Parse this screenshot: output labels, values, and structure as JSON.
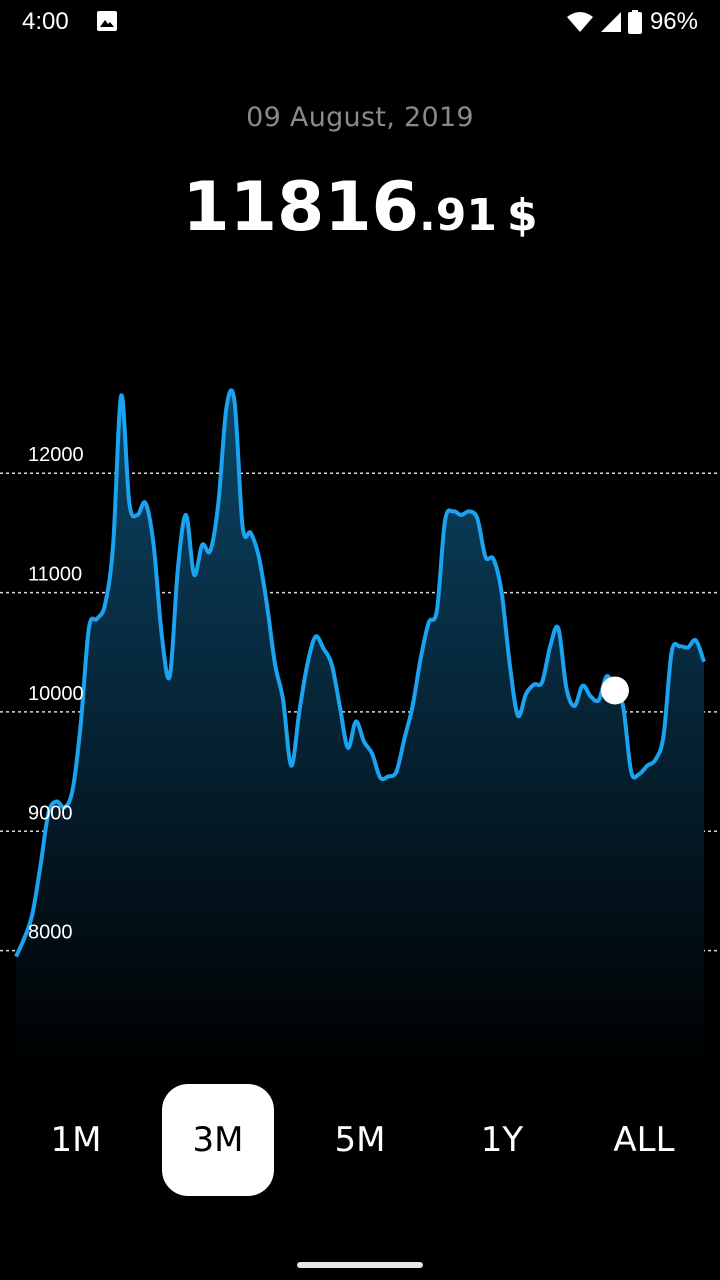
{
  "status_bar": {
    "time": "4:00",
    "battery": "96%",
    "icons": [
      "image-icon",
      "wifi-icon",
      "signal-icon",
      "battery-icon"
    ]
  },
  "header": {
    "date": "09 August, 2019",
    "price_integer": "11816",
    "price_fraction": ".91",
    "currency": "$"
  },
  "chart_data": {
    "type": "area",
    "title": "",
    "xlabel": "",
    "ylabel": "",
    "ylim": [
      7000,
      13200
    ],
    "yticks": [
      "12000",
      "11000",
      "10000",
      "9000",
      "8000"
    ],
    "grid": true,
    "line_color": "#1aa3f0",
    "fill_color": "#0b4566",
    "highlight_index": 74,
    "series": [
      {
        "values": [
          7950,
          8100,
          8300,
          8700,
          9150,
          9250,
          9200,
          9350,
          9900,
          10700,
          10780,
          10900,
          11400,
          12650,
          11750,
          11650,
          11750,
          11400,
          10650,
          10300,
          11200,
          11650,
          11150,
          11400,
          11350,
          11750,
          12550,
          12600,
          11550,
          11500,
          11300,
          10900,
          10400,
          10100,
          9550,
          10000,
          10400,
          10630,
          10530,
          10400,
          10050,
          9700,
          9920,
          9750,
          9650,
          9450,
          9460,
          9500,
          9780,
          10050,
          10450,
          10750,
          10850,
          11600,
          11680,
          11650,
          11680,
          11620,
          11300,
          11280,
          11000,
          10400,
          9970,
          10150,
          10230,
          10250,
          10550,
          10700,
          10200,
          10050,
          10220,
          10130,
          10100,
          10300,
          10180,
          10050,
          9500,
          9480,
          9550,
          9600,
          9800,
          10500,
          10550,
          10540,
          10600,
          10420
        ]
      }
    ]
  },
  "period_tabs": {
    "items": [
      "1M",
      "3M",
      "5M",
      "1Y",
      "ALL"
    ],
    "active": "3M"
  }
}
